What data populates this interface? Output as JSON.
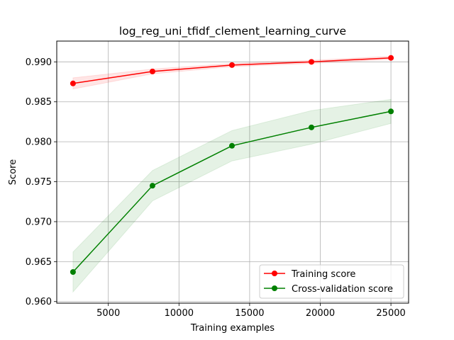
{
  "chart_data": {
    "type": "line",
    "title": "log_reg_uni_tfidf_clement_learning_curve",
    "xlabel": "Training examples",
    "ylabel": "Score",
    "xlim": [
      1350,
      26250
    ],
    "ylim": [
      0.9598,
      0.9926
    ],
    "xticks": [
      5000,
      10000,
      15000,
      20000,
      25000
    ],
    "yticks": [
      0.96,
      0.965,
      0.97,
      0.975,
      0.98,
      0.985,
      0.99
    ],
    "ytick_labels": [
      "0.960",
      "0.965",
      "0.970",
      "0.975",
      "0.980",
      "0.985",
      "0.990"
    ],
    "grid": true,
    "legend_placement": "lower-right",
    "x": [
      2500,
      8125,
      13750,
      19375,
      25000
    ],
    "series": [
      {
        "name": "Training score",
        "color": "#ff0000",
        "values": [
          0.9873,
          0.9888,
          0.9896,
          0.99,
          0.9905
        ],
        "lower": [
          0.9866,
          0.9885,
          0.9894,
          0.9898,
          0.9903
        ],
        "upper": [
          0.988,
          0.9891,
          0.9898,
          0.9902,
          0.9907
        ]
      },
      {
        "name": "Cross-validation score",
        "color": "#008000",
        "values": [
          0.9637,
          0.9745,
          0.9795,
          0.9818,
          0.9838
        ],
        "lower": [
          0.9612,
          0.9726,
          0.9776,
          0.9797,
          0.9823
        ],
        "upper": [
          0.9662,
          0.9764,
          0.9814,
          0.9839,
          0.9853
        ]
      }
    ]
  }
}
